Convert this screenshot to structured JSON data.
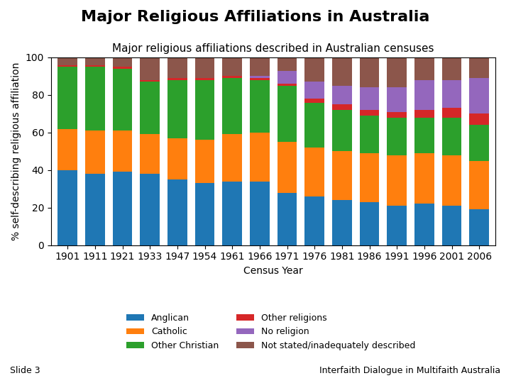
{
  "chart_data": {
    "type": "bar",
    "stacked": true,
    "title": "Major Religious Affiliations in Australia",
    "subtitle": "Major religious affiliations described in Australian censuses",
    "x_label": "Census Year",
    "y_label": "% self-describing religious affiliation",
    "annotations": [
      "Slide 3",
      "Interfaith Dialogue in Multifaith Australia"
    ],
    "categories": [
      "1901",
      "1911",
      "1921",
      "1933",
      "1947",
      "1954",
      "1961",
      "1966",
      "1971",
      "1976",
      "1981",
      "1986",
      "1991",
      "1996",
      "2001",
      "2006"
    ],
    "series": [
      {
        "name": "Anglican",
        "values": [
          40,
          38,
          39,
          38,
          35,
          33,
          34,
          34,
          28,
          26,
          24,
          23,
          21,
          22,
          21,
          19
        ]
      },
      {
        "name": "Catholic",
        "values": [
          22,
          23,
          22,
          21,
          22,
          23,
          25,
          26,
          27,
          26,
          26,
          26,
          27,
          27,
          27,
          26
        ]
      },
      {
        "name": "Other Christian",
        "values": [
          33,
          34,
          33,
          28,
          31,
          32,
          30,
          28,
          30,
          24,
          22,
          20,
          20,
          19,
          20,
          19
        ]
      },
      {
        "name": "Other religions",
        "values": [
          1,
          1,
          1,
          1,
          1,
          1,
          1,
          1,
          1,
          2,
          3,
          3,
          3,
          4,
          5,
          6
        ]
      },
      {
        "name": "No religion",
        "values": [
          0,
          0,
          0,
          0,
          0,
          0,
          0,
          1,
          7,
          9,
          10,
          12,
          13,
          16,
          15,
          19
        ]
      },
      {
        "name": "Not stated/inadequately described",
        "values": [
          4,
          4,
          5,
          12,
          11,
          11,
          10,
          10,
          7,
          13,
          15,
          16,
          16,
          12,
          12,
          11
        ]
      }
    ],
    "ylim": [
      0,
      100
    ],
    "yticks": [
      0,
      20,
      40,
      60,
      80,
      100
    ],
    "grid": false,
    "legend": "lower center"
  }
}
